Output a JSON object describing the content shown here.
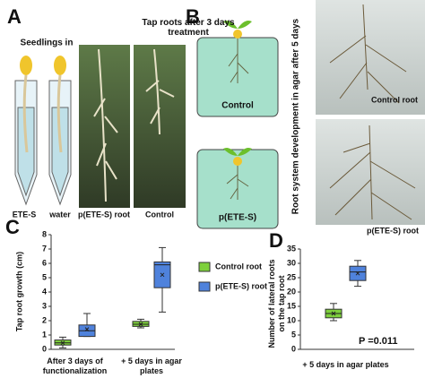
{
  "panels": {
    "a": {
      "letter": "A",
      "seedlings_title": "Seedlings in",
      "tubes": [
        "ETE-S",
        "water"
      ],
      "photos_title": "Tap roots after 3 days treatment",
      "photos": [
        "p(ETE-S) root",
        "Control"
      ]
    },
    "b": {
      "letter": "B",
      "diagrams": [
        "Control",
        "p(ETE-S)"
      ],
      "side_title": "Root system development in agar after 5 days",
      "photos": [
        "Control root",
        "p(ETE-S) root"
      ]
    }
  },
  "chart_data": [
    {
      "type": "box",
      "panel_label": "C",
      "y_label": "Tap root growth (cm)",
      "categories": [
        "After 3 days of functionalization",
        "+ 5 days in agar plates"
      ],
      "ylim": [
        0,
        8
      ],
      "yticks": [
        0,
        1,
        2,
        3,
        4,
        5,
        6,
        7,
        8
      ],
      "series": [
        {
          "name": "Control root",
          "color": "#7ed03c",
          "min": [
            0.1,
            1.5
          ],
          "q1": [
            0.3,
            1.6
          ],
          "median": [
            0.45,
            1.75
          ],
          "q3": [
            0.65,
            1.95
          ],
          "max": [
            0.85,
            2.1
          ],
          "mean": [
            0.45,
            1.75
          ]
        },
        {
          "name": "p(ETE-S) root",
          "color": "#4f82dc",
          "min": [
            0.9,
            2.6
          ],
          "q1": [
            0.9,
            4.3
          ],
          "median": [
            1.3,
            5.9
          ],
          "q3": [
            1.7,
            6.1
          ],
          "max": [
            2.5,
            7.1
          ],
          "mean": [
            1.4,
            5.2
          ]
        }
      ]
    },
    {
      "type": "box",
      "panel_label": "D",
      "y_label": "Number of lateral roots on the tap root",
      "categories": [
        "+ 5 days in agar plates"
      ],
      "annotation": "P =0.011",
      "ylim": [
        0,
        35
      ],
      "yticks": [
        0,
        5,
        10,
        15,
        20,
        25,
        30,
        35
      ],
      "series": [
        {
          "color": "#7ed03c",
          "min": [
            10
          ],
          "q1": [
            11
          ],
          "median": [
            12.5
          ],
          "q3": [
            14
          ],
          "max": [
            16
          ],
          "mean": [
            12.5
          ]
        },
        {
          "color": "#4f82dc",
          "min": [
            22
          ],
          "q1": [
            24
          ],
          "median": [
            27
          ],
          "q3": [
            29
          ],
          "max": [
            31
          ],
          "mean": [
            26.5
          ]
        }
      ]
    }
  ]
}
